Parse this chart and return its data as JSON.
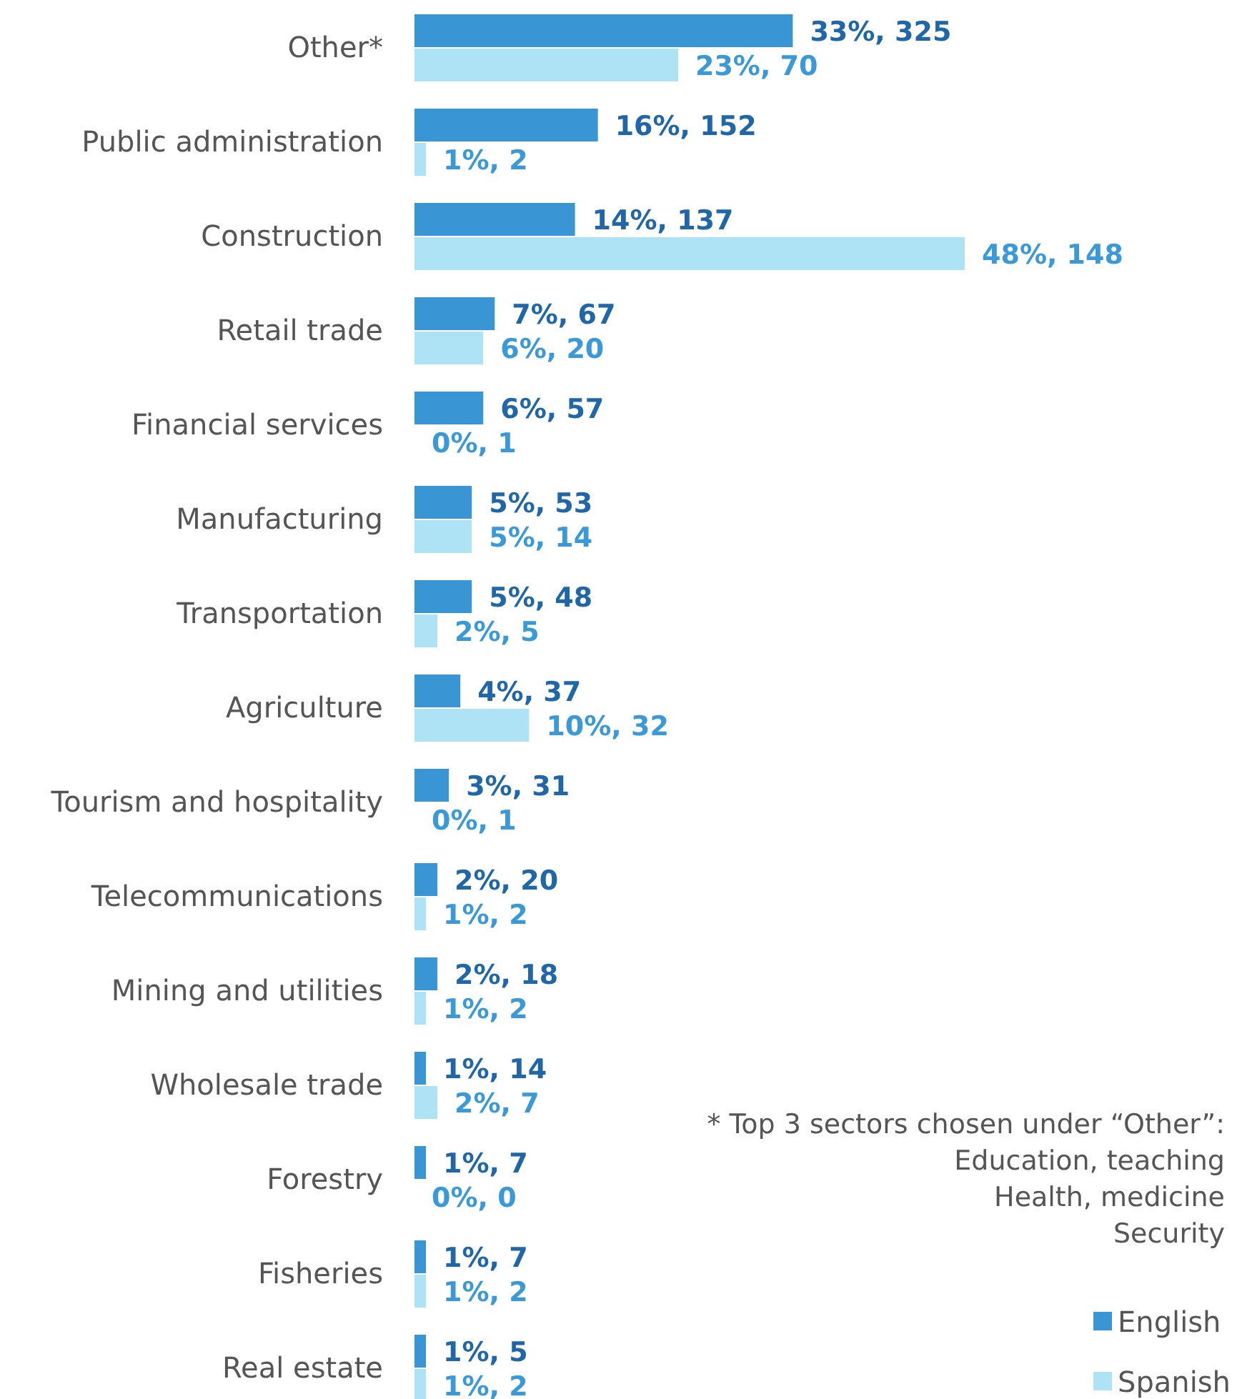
{
  "chart_data": {
    "type": "bar",
    "orientation": "horizontal",
    "categories": [
      "Other*",
      "Public administration",
      "Construction",
      "Retail trade",
      "Financial services",
      "Manufacturing",
      "Transportation",
      "Agriculture",
      "Tourism and hospitality",
      "Telecommunications",
      "Mining and utilities",
      "Wholesale trade",
      "Forestry",
      "Fisheries",
      "Real estate"
    ],
    "series": [
      {
        "name": "English",
        "color": "#3a95d5",
        "values": [
          33,
          16,
          14,
          7,
          6,
          5,
          5,
          4,
          3,
          2,
          2,
          1,
          1,
          1,
          1
        ],
        "value_labels": [
          "33%, 325",
          "16%, 152",
          "14%, 137",
          "7%, 67",
          "6%, 57",
          "5%, 53",
          "5%, 48",
          "4%, 37",
          "3%, 31",
          "2%, 20",
          "2%, 18",
          "1%, 14",
          "1%, 7",
          "1%, 7",
          "1%, 5"
        ]
      },
      {
        "name": "Spanish",
        "color": "#aee3f5",
        "values": [
          23,
          1,
          48,
          6,
          0,
          5,
          2,
          10,
          0,
          1,
          1,
          2,
          0,
          1,
          1
        ],
        "value_labels": [
          "23%, 70",
          "1%, 2",
          "48%, 148",
          "6%, 20",
          "0%, 1",
          "5%, 14",
          "2%, 5",
          "10%, 32",
          "0%, 1",
          "1%, 2",
          "1%, 2",
          "2%, 7",
          "0%, 0",
          "1%, 2",
          "1%, 2"
        ]
      }
    ],
    "annotations": [
      "* Top 3 sectors chosen under “Other”:",
      "Education, teaching",
      "Health, medicine",
      "Security"
    ],
    "legend": "bottom right"
  }
}
